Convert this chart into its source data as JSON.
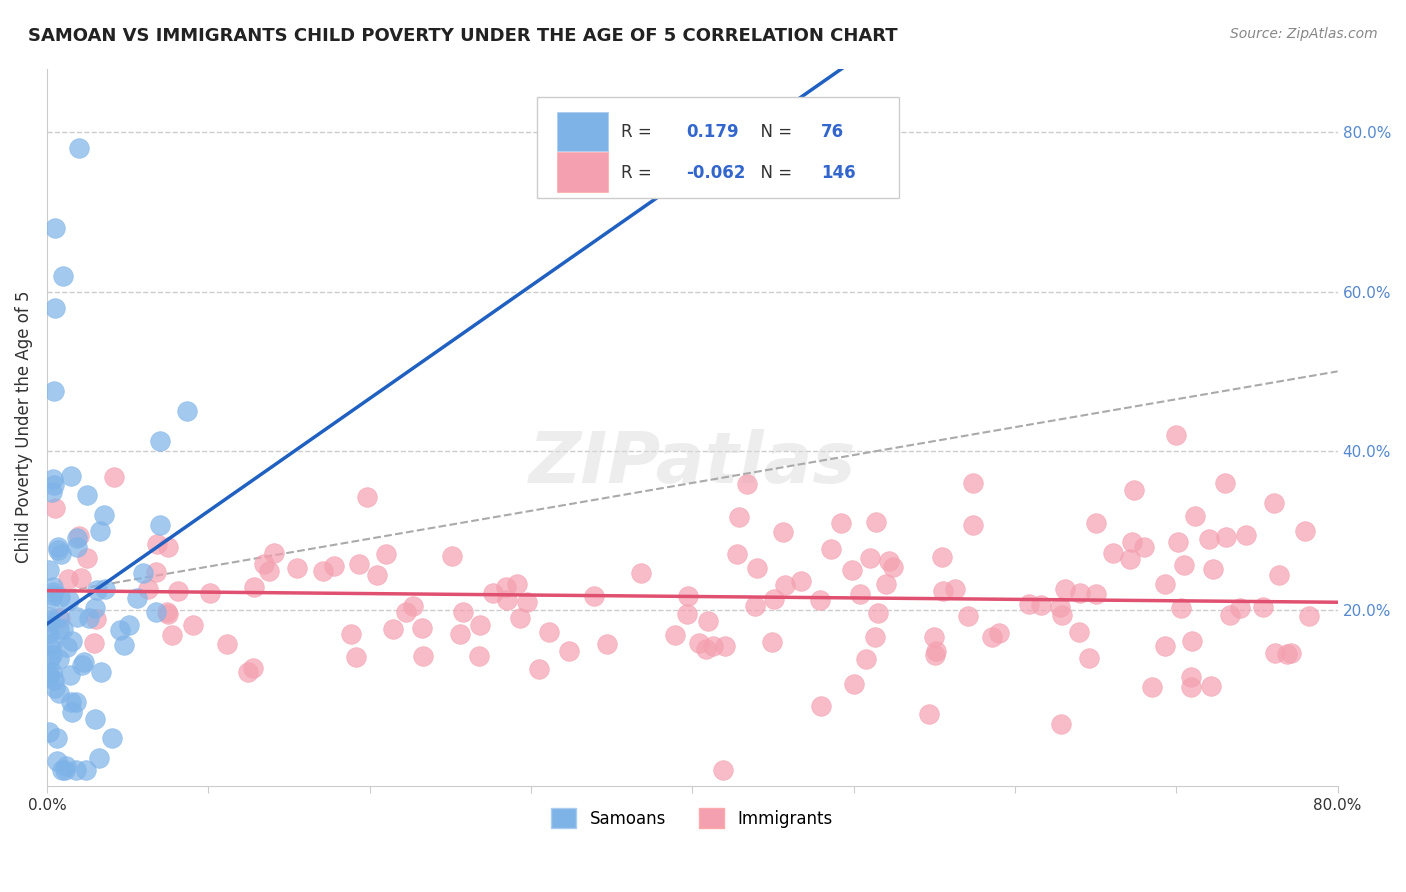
{
  "title": "SAMOAN VS IMMIGRANTS CHILD POVERTY UNDER THE AGE OF 5 CORRELATION CHART",
  "source": "Source: ZipAtlas.com",
  "ylabel": "Child Poverty Under the Age of 5",
  "xlim": [
    0.0,
    0.8
  ],
  "ylim": [
    -0.02,
    0.88
  ],
  "y_tick_labels_right": [
    "20.0%",
    "40.0%",
    "60.0%",
    "80.0%"
  ],
  "y_ticks_right": [
    0.2,
    0.4,
    0.6,
    0.8
  ],
  "samoans_color": "#7EB3E8",
  "immigrants_color": "#F4A0B0",
  "samoans_line_color": "#2060C0",
  "immigrants_line_color": "#E05070",
  "dashed_line_color": "#AAAAAA",
  "R_samoans": 0.179,
  "N_samoans": 76,
  "R_immigrants": -0.062,
  "N_immigrants": 146,
  "legend_label_samoans": "Samoans",
  "legend_label_immigrants": "Immigrants",
  "background_color": "#FFFFFF"
}
